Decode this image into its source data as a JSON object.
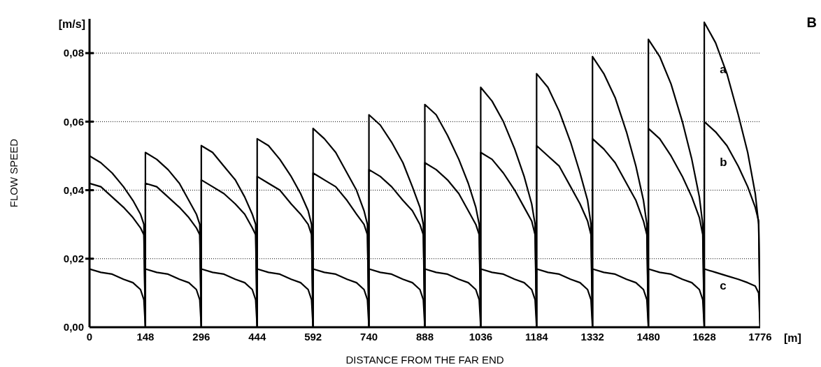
{
  "chart_data": {
    "type": "line",
    "xlabel": "DISTANCE FROM THE FAR END",
    "ylabel": "FLOW SPEED",
    "annotations": [
      "[m/s]",
      "[m]",
      "B"
    ],
    "x": [
      0,
      30,
      60,
      90,
      115,
      135,
      144,
      148,
      148,
      178,
      208,
      238,
      263,
      283,
      292,
      296,
      296,
      326,
      356,
      386,
      411,
      431,
      440,
      444,
      444,
      474,
      504,
      534,
      559,
      579,
      588,
      592,
      592,
      622,
      652,
      682,
      707,
      727,
      736,
      740,
      740,
      770,
      800,
      830,
      855,
      875,
      884,
      888,
      888,
      918,
      948,
      978,
      1003,
      1023,
      1032,
      1036,
      1036,
      1066,
      1096,
      1126,
      1151,
      1171,
      1180,
      1184,
      1184,
      1214,
      1244,
      1274,
      1299,
      1319,
      1328,
      1332,
      1332,
      1362,
      1392,
      1422,
      1447,
      1467,
      1476,
      1480,
      1480,
      1510,
      1540,
      1570,
      1595,
      1615,
      1624,
      1628,
      1628,
      1658,
      1688,
      1718,
      1743,
      1763,
      1772,
      1776
    ],
    "series": [
      {
        "name": "a",
        "color": "#000000",
        "values": [
          0.05,
          0.048,
          0.045,
          0.041,
          0.037,
          0.033,
          0.03,
          0,
          0.051,
          0.049,
          0.046,
          0.042,
          0.037,
          0.033,
          0.03,
          0,
          0.053,
          0.051,
          0.047,
          0.043,
          0.038,
          0.033,
          0.03,
          0,
          0.055,
          0.053,
          0.049,
          0.044,
          0.039,
          0.034,
          0.03,
          0,
          0.058,
          0.055,
          0.051,
          0.045,
          0.04,
          0.034,
          0.03,
          0,
          0.062,
          0.059,
          0.054,
          0.048,
          0.041,
          0.035,
          0.03,
          0,
          0.065,
          0.062,
          0.056,
          0.049,
          0.042,
          0.035,
          0.03,
          0,
          0.07,
          0.066,
          0.06,
          0.052,
          0.044,
          0.036,
          0.03,
          0,
          0.074,
          0.07,
          0.063,
          0.054,
          0.045,
          0.037,
          0.03,
          0,
          0.079,
          0.074,
          0.067,
          0.057,
          0.047,
          0.037,
          0.03,
          0,
          0.084,
          0.079,
          0.071,
          0.06,
          0.049,
          0.038,
          0.03,
          0,
          0.089,
          0.083,
          0.074,
          0.062,
          0.051,
          0.039,
          0.03,
          0
        ]
      },
      {
        "name": "b",
        "color": "#000000",
        "values": [
          0.042,
          0.041,
          0.038,
          0.035,
          0.032,
          0.029,
          0.027,
          0,
          0.042,
          0.041,
          0.038,
          0.035,
          0.032,
          0.029,
          0.027,
          0,
          0.043,
          0.041,
          0.039,
          0.036,
          0.033,
          0.029,
          0.027,
          0,
          0.044,
          0.042,
          0.04,
          0.036,
          0.033,
          0.03,
          0.027,
          0,
          0.045,
          0.043,
          0.041,
          0.037,
          0.033,
          0.03,
          0.027,
          0,
          0.046,
          0.044,
          0.041,
          0.037,
          0.034,
          0.03,
          0.027,
          0,
          0.048,
          0.046,
          0.043,
          0.039,
          0.034,
          0.03,
          0.027,
          0,
          0.051,
          0.049,
          0.045,
          0.04,
          0.035,
          0.031,
          0.027,
          0,
          0.053,
          0.05,
          0.047,
          0.041,
          0.036,
          0.031,
          0.027,
          0,
          0.055,
          0.052,
          0.048,
          0.042,
          0.037,
          0.031,
          0.027,
          0,
          0.058,
          0.055,
          0.05,
          0.044,
          0.038,
          0.032,
          0.027,
          0,
          0.06,
          0.057,
          0.053,
          0.047,
          0.041,
          0.035,
          0.031,
          0
        ]
      },
      {
        "name": "c",
        "color": "#000000",
        "values": [
          0.017,
          0.016,
          0.0155,
          0.014,
          0.013,
          0.011,
          0.008,
          0,
          0.017,
          0.016,
          0.0155,
          0.014,
          0.013,
          0.011,
          0.008,
          0,
          0.017,
          0.016,
          0.0155,
          0.014,
          0.013,
          0.011,
          0.008,
          0,
          0.017,
          0.016,
          0.0155,
          0.014,
          0.013,
          0.011,
          0.008,
          0,
          0.017,
          0.016,
          0.0155,
          0.014,
          0.013,
          0.011,
          0.008,
          0,
          0.017,
          0.016,
          0.0155,
          0.014,
          0.013,
          0.011,
          0.008,
          0,
          0.017,
          0.016,
          0.0155,
          0.014,
          0.013,
          0.011,
          0.008,
          0,
          0.017,
          0.016,
          0.0155,
          0.014,
          0.013,
          0.011,
          0.008,
          0,
          0.017,
          0.016,
          0.0155,
          0.014,
          0.013,
          0.011,
          0.008,
          0,
          0.017,
          0.016,
          0.0155,
          0.014,
          0.013,
          0.011,
          0.008,
          0,
          0.017,
          0.016,
          0.0155,
          0.014,
          0.013,
          0.011,
          0.008,
          0,
          0.017,
          0.016,
          0.015,
          0.014,
          0.013,
          0.012,
          0.01,
          0
        ]
      }
    ],
    "xlim": [
      0,
      1776
    ],
    "xticks": [
      0,
      148,
      296,
      444,
      592,
      740,
      888,
      1036,
      1184,
      1332,
      1480,
      1628,
      1776
    ],
    "ylim": [
      0,
      0.09
    ],
    "yticks": [
      {
        "value": 0,
        "label": "0,00"
      },
      {
        "value": 0.02,
        "label": "0,02"
      },
      {
        "value": 0.04,
        "label": "0,04"
      },
      {
        "value": 0.06,
        "label": "0,06"
      },
      {
        "value": 0.08,
        "label": "0,08"
      }
    ],
    "grid": "y",
    "legend": false,
    "marker": "none",
    "line_style": "solid"
  }
}
